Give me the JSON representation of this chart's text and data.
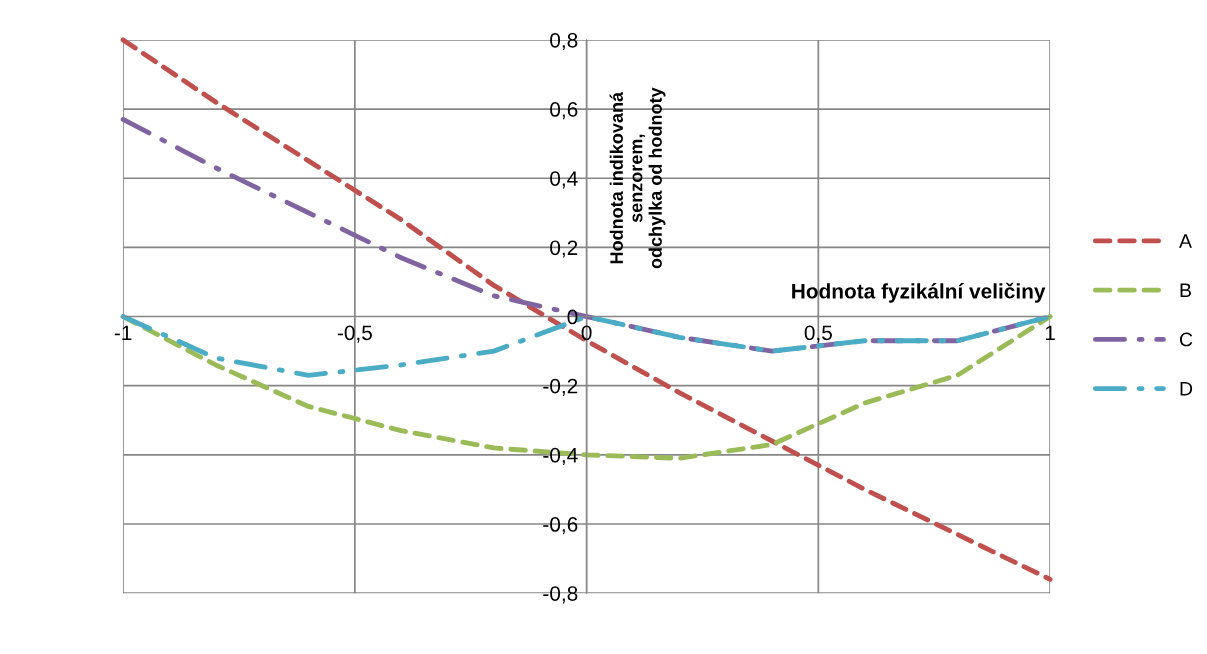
{
  "chart_data": {
    "type": "line",
    "xlabel": "Hodnota fyzikální veličiny",
    "ylabel": "Hodnota indikovaná\nsenzorem,\nodchylka od hodnoty",
    "x": [
      -1,
      -0.8,
      -0.6,
      -0.4,
      -0.2,
      0,
      0.2,
      0.4,
      0.6,
      0.8,
      1
    ],
    "series": [
      {
        "name": "A",
        "color": "#c0504d",
        "line_style": "dashed",
        "values": [
          0.8,
          0.62,
          0.45,
          0.28,
          0.09,
          -0.07,
          -0.22,
          -0.36,
          -0.5,
          -0.63,
          -0.76
        ]
      },
      {
        "name": "B",
        "color": "#9bbb59",
        "line_style": "dashed",
        "values": [
          0,
          -0.14,
          -0.26,
          -0.33,
          -0.38,
          -0.4,
          -0.41,
          -0.37,
          -0.25,
          -0.17,
          0
        ]
      },
      {
        "name": "C",
        "color": "#8064a2",
        "line_style": "dashdot",
        "values": [
          0.57,
          0.43,
          0.3,
          0.17,
          0.06,
          0,
          -0.06,
          -0.1,
          -0.07,
          -0.07,
          0
        ]
      },
      {
        "name": "D",
        "color": "#4bacc6",
        "line_style": "dashdot",
        "values": [
          0,
          -0.12,
          -0.17,
          -0.14,
          -0.1,
          0,
          -0.06,
          -0.1,
          -0.07,
          -0.07,
          0
        ]
      }
    ],
    "xlim": [
      -1,
      1
    ],
    "xticks": [
      {
        "value": -1,
        "label": "-1"
      },
      {
        "value": -0.5,
        "label": "-0,5"
      },
      {
        "value": 0,
        "label": "0"
      },
      {
        "value": 0.5,
        "label": "0,5"
      },
      {
        "value": 1,
        "label": "1"
      }
    ],
    "ylim": [
      -0.8,
      0.8
    ],
    "yticks": [
      {
        "value": -0.8,
        "label": "-0,8"
      },
      {
        "value": -0.6,
        "label": "-0,6"
      },
      {
        "value": -0.4,
        "label": "-0,4"
      },
      {
        "value": -0.2,
        "label": "-0,2"
      },
      {
        "value": 0,
        "label": "0"
      },
      {
        "value": 0.2,
        "label": "0,2"
      },
      {
        "value": 0.4,
        "label": "0,4"
      },
      {
        "value": 0.6,
        "label": "0,6"
      },
      {
        "value": 0.8,
        "label": "0,8"
      }
    ],
    "grid": true,
    "legend": "right"
  }
}
